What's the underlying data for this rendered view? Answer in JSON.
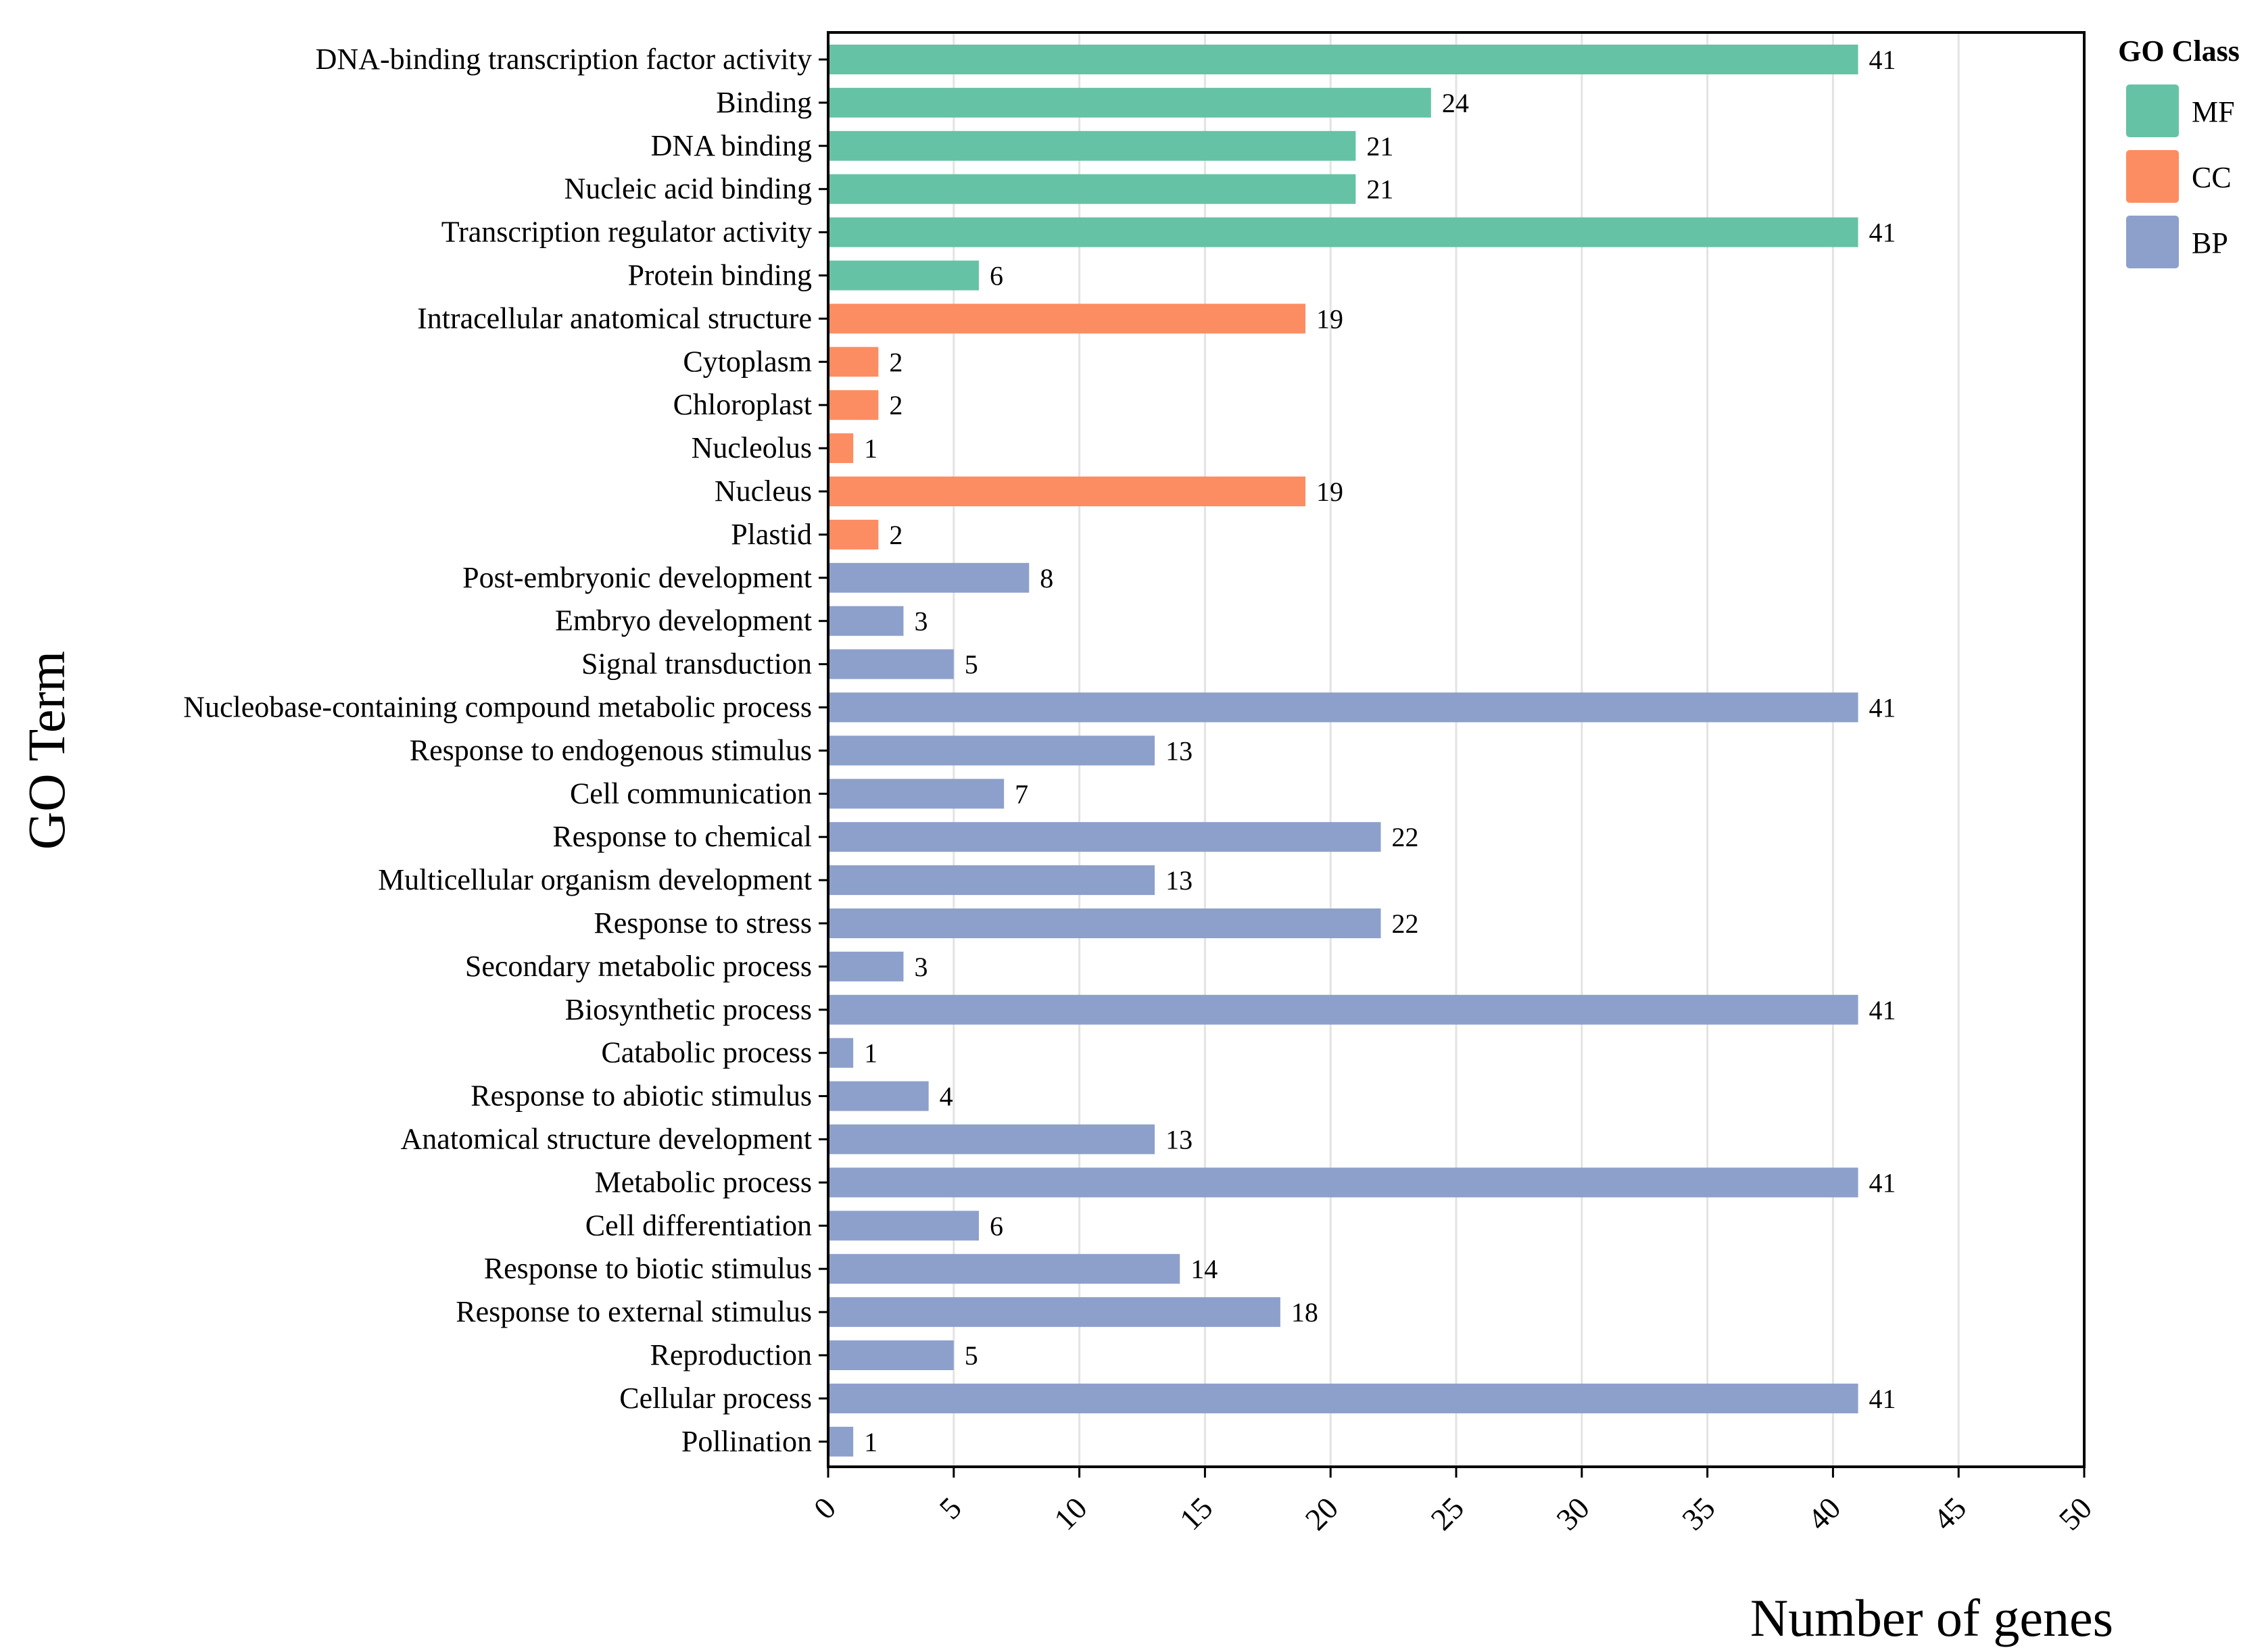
{
  "chart_data": {
    "type": "bar",
    "orientation": "horizontal",
    "xlabel": "Number of genes",
    "ylabel": "GO Term",
    "xlim": [
      0,
      50
    ],
    "xticks": [
      "0",
      "5",
      "10",
      "15",
      "20",
      "25",
      "30",
      "35",
      "40",
      "45",
      "50"
    ],
    "grid": "vertical",
    "legend": {
      "title": "GO Class",
      "placement": "top-right",
      "entries": [
        {
          "name": "MF",
          "color": "#66c2a5"
        },
        {
          "name": "CC",
          "color": "#fc8d62"
        },
        {
          "name": "BP",
          "color": "#8da0cb"
        }
      ]
    },
    "bars": [
      {
        "term": "DNA-binding transcription factor activity",
        "value": 41,
        "class": "MF"
      },
      {
        "term": "Binding",
        "value": 24,
        "class": "MF"
      },
      {
        "term": "DNA binding",
        "value": 21,
        "class": "MF"
      },
      {
        "term": "Nucleic acid binding",
        "value": 21,
        "class": "MF"
      },
      {
        "term": "Transcription regulator activity",
        "value": 41,
        "class": "MF"
      },
      {
        "term": "Protein binding",
        "value": 6,
        "class": "MF"
      },
      {
        "term": "Intracellular anatomical structure",
        "value": 19,
        "class": "CC"
      },
      {
        "term": "Cytoplasm",
        "value": 2,
        "class": "CC"
      },
      {
        "term": "Chloroplast",
        "value": 2,
        "class": "CC"
      },
      {
        "term": "Nucleolus",
        "value": 1,
        "class": "CC"
      },
      {
        "term": "Nucleus",
        "value": 19,
        "class": "CC"
      },
      {
        "term": "Plastid",
        "value": 2,
        "class": "CC"
      },
      {
        "term": "Post-embryonic development",
        "value": 8,
        "class": "BP"
      },
      {
        "term": "Embryo development",
        "value": 3,
        "class": "BP"
      },
      {
        "term": "Signal transduction",
        "value": 5,
        "class": "BP"
      },
      {
        "term": "Nucleobase-containing compound metabolic process",
        "value": 41,
        "class": "BP"
      },
      {
        "term": "Response to endogenous stimulus",
        "value": 13,
        "class": "BP"
      },
      {
        "term": "Cell communication",
        "value": 7,
        "class": "BP"
      },
      {
        "term": "Response to chemical",
        "value": 22,
        "class": "BP"
      },
      {
        "term": "Multicellular organism development",
        "value": 13,
        "class": "BP"
      },
      {
        "term": "Response to stress",
        "value": 22,
        "class": "BP"
      },
      {
        "term": "Secondary metabolic process",
        "value": 3,
        "class": "BP"
      },
      {
        "term": "Biosynthetic process",
        "value": 41,
        "class": "BP"
      },
      {
        "term": "Catabolic process",
        "value": 1,
        "class": "BP"
      },
      {
        "term": "Response to abiotic stimulus",
        "value": 4,
        "class": "BP"
      },
      {
        "term": "Anatomical structure development",
        "value": 13,
        "class": "BP"
      },
      {
        "term": "Metabolic process",
        "value": 41,
        "class": "BP"
      },
      {
        "term": "Cell differentiation",
        "value": 6,
        "class": "BP"
      },
      {
        "term": "Response to biotic stimulus",
        "value": 14,
        "class": "BP"
      },
      {
        "term": "Response to external stimulus",
        "value": 18,
        "class": "BP"
      },
      {
        "term": "Reproduction",
        "value": 5,
        "class": "BP"
      },
      {
        "term": "Cellular process",
        "value": 41,
        "class": "BP"
      },
      {
        "term": "Pollination",
        "value": 1,
        "class": "BP"
      }
    ]
  }
}
